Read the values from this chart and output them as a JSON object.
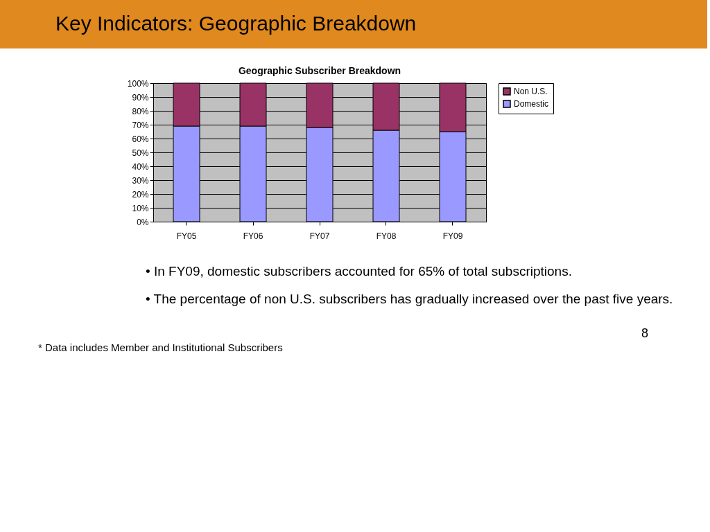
{
  "chart_data": {
    "type": "bar",
    "title": "Key Indicators:  Geographic Breakdown",
    "subtitle": "Geographic Subscriber Breakdown",
    "categories": [
      "FY05",
      "FY06",
      "FY07",
      "FY08",
      "FY09"
    ],
    "series": [
      {
        "name": "Domestic",
        "color": "#9999ff",
        "values": [
          69,
          69,
          68,
          66,
          65
        ]
      },
      {
        "name": "Non U.S.",
        "color": "#993366",
        "values": [
          31,
          31,
          32,
          34,
          35
        ]
      }
    ],
    "stacked": true,
    "ylim": [
      0,
      100
    ],
    "yticks": [
      {
        "value": 0,
        "label": "0%"
      },
      {
        "value": 10,
        "label": "10%"
      },
      {
        "value": 20,
        "label": "20%"
      },
      {
        "value": 30,
        "label": "30%"
      },
      {
        "value": 40,
        "label": "40%"
      },
      {
        "value": 50,
        "label": "50%"
      },
      {
        "value": 60,
        "label": "60%"
      },
      {
        "value": 70,
        "label": "70%"
      },
      {
        "value": 80,
        "label": "80%"
      },
      {
        "value": 90,
        "label": "90%"
      },
      {
        "value": 100,
        "label": "100%"
      }
    ],
    "grid": "y",
    "legend": "right",
    "annotations": [
      "•  In FY09, domestic subscribers accounted for 65% of total subscriptions.",
      "•  The percentage of non U.S. subscribers has gradually increased over the past five years.",
      "* Data includes Member and Institutional Subscribers",
      "8"
    ]
  }
}
